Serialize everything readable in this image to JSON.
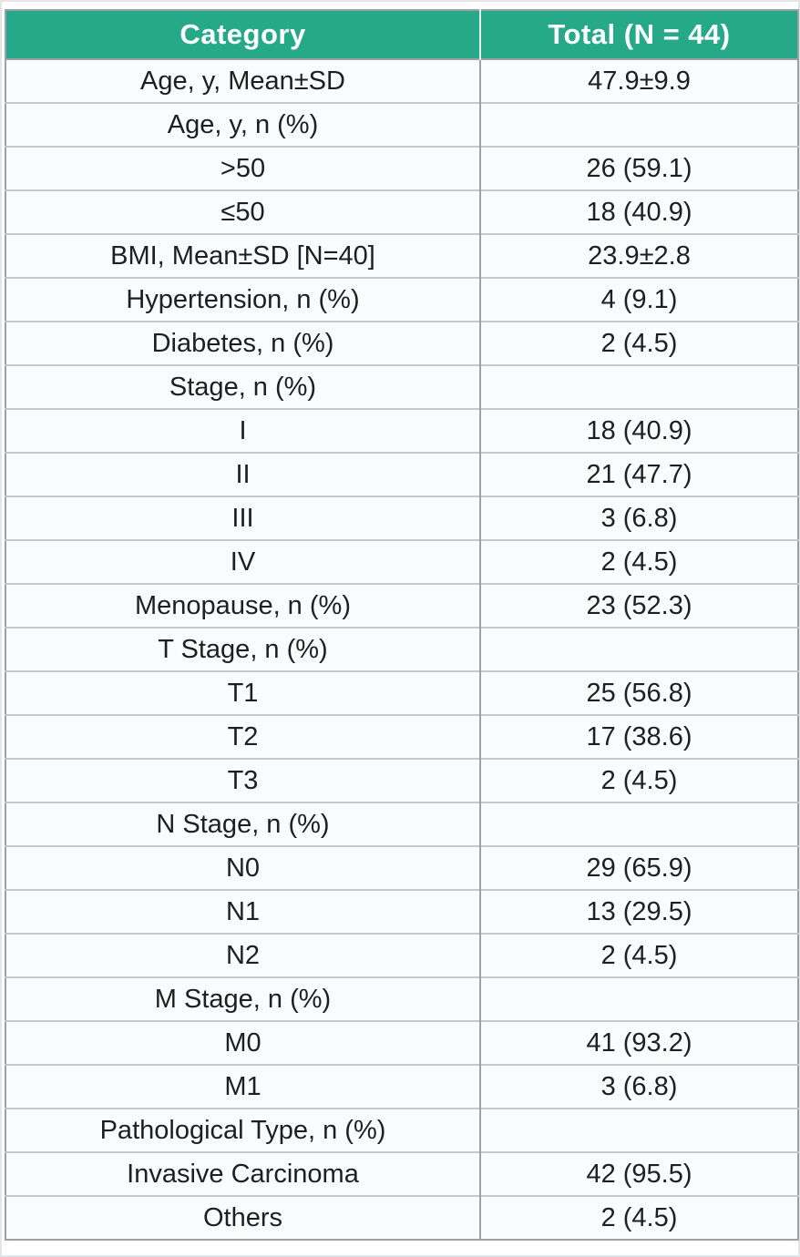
{
  "colors": {
    "header_background": "#26a989",
    "header_text": "#ffffff",
    "body_text": "#1f1f1f",
    "row_background": "#fafbfc",
    "grid_line": "#c3c8cc",
    "outer_border": "#9ba1a6"
  },
  "table": {
    "columns": [
      "Category",
      "Total (N = 44)"
    ],
    "rows": [
      {
        "category": "Age, y, Mean±SD",
        "value": "47.9±9.9"
      },
      {
        "category": "Age, y, n (%)",
        "value": ""
      },
      {
        "category": ">50",
        "value": "26 (59.1)"
      },
      {
        "category": "≤50",
        "value": "18 (40.9)"
      },
      {
        "category": "BMI, Mean±SD [N=40]",
        "value": "23.9±2.8"
      },
      {
        "category": "Hypertension, n (%)",
        "value": "4 (9.1)"
      },
      {
        "category": "Diabetes, n (%)",
        "value": "2 (4.5)"
      },
      {
        "category": "Stage, n (%)",
        "value": ""
      },
      {
        "category": "I",
        "value": "18 (40.9)"
      },
      {
        "category": "II",
        "value": "21 (47.7)"
      },
      {
        "category": "III",
        "value": "3 (6.8)"
      },
      {
        "category": "IV",
        "value": "2 (4.5)"
      },
      {
        "category": "Menopause, n (%)",
        "value": "23 (52.3)"
      },
      {
        "category": "T Stage, n (%)",
        "value": ""
      },
      {
        "category": "T1",
        "value": "25 (56.8)"
      },
      {
        "category": "T2",
        "value": "17 (38.6)"
      },
      {
        "category": "T3",
        "value": "2 (4.5)"
      },
      {
        "category": "N Stage, n (%)",
        "value": ""
      },
      {
        "category": "N0",
        "value": "29 (65.9)"
      },
      {
        "category": "N1",
        "value": "13 (29.5)"
      },
      {
        "category": "N2",
        "value": "2 (4.5)"
      },
      {
        "category": "M Stage, n (%)",
        "value": ""
      },
      {
        "category": "M0",
        "value": "41 (93.2)"
      },
      {
        "category": "M1",
        "value": "3 (6.8)"
      },
      {
        "category": "Pathological Type, n (%)",
        "value": ""
      },
      {
        "category": "Invasive Carcinoma",
        "value": "42 (95.5)"
      },
      {
        "category": "Others",
        "value": "2 (4.5)"
      }
    ]
  },
  "chart_data": {
    "type": "table",
    "columns": [
      "Category",
      "Total (N = 44)"
    ],
    "rows": [
      [
        "Age, y, Mean±SD",
        "47.9±9.9"
      ],
      [
        "Age, y, n (%)",
        ""
      ],
      [
        ">50",
        "26 (59.1)"
      ],
      [
        "≤50",
        "18 (40.9)"
      ],
      [
        "BMI, Mean±SD [N=40]",
        "23.9±2.8"
      ],
      [
        "Hypertension, n (%)",
        "4 (9.1)"
      ],
      [
        "Diabetes, n (%)",
        "2 (4.5)"
      ],
      [
        "Stage, n (%)",
        ""
      ],
      [
        "I",
        "18 (40.9)"
      ],
      [
        "II",
        "21 (47.7)"
      ],
      [
        "III",
        "3 (6.8)"
      ],
      [
        "IV",
        "2 (4.5)"
      ],
      [
        "Menopause, n (%)",
        "23 (52.3)"
      ],
      [
        "T Stage, n (%)",
        ""
      ],
      [
        "T1",
        "25 (56.8)"
      ],
      [
        "T2",
        "17 (38.6)"
      ],
      [
        "T3",
        "2 (4.5)"
      ],
      [
        "N Stage, n (%)",
        ""
      ],
      [
        "N0",
        "29 (65.9)"
      ],
      [
        "N1",
        "13 (29.5)"
      ],
      [
        "N2",
        "2 (4.5)"
      ],
      [
        "M Stage, n (%)",
        ""
      ],
      [
        "M0",
        "41 (93.2)"
      ],
      [
        "M1",
        "3 (6.8)"
      ],
      [
        "Pathological Type, n (%)",
        ""
      ],
      [
        "Invasive Carcinoma",
        "42 (95.5)"
      ],
      [
        "Others",
        "2 (4.5)"
      ]
    ]
  }
}
